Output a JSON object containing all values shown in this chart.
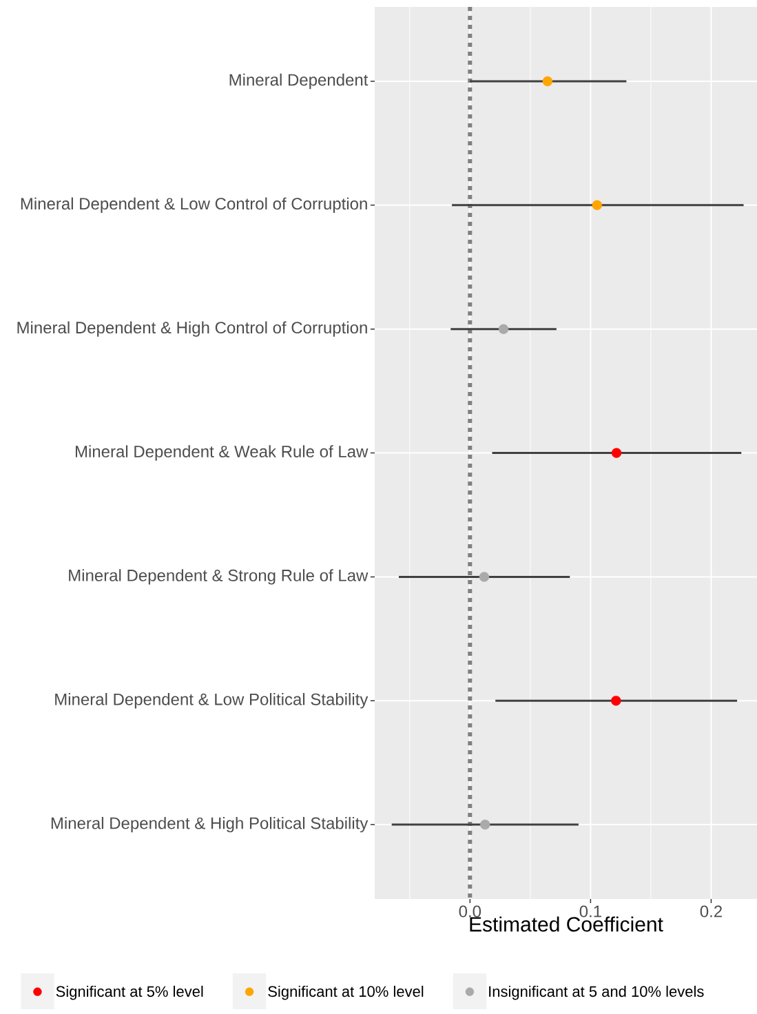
{
  "chart_data": {
    "type": "scatter",
    "orientation": "horizontal",
    "categories": [
      "Mineral Dependent",
      "Mineral Dependent & Low Control of Corruption",
      "Mineral Dependent & High Control of Corruption",
      "Mineral Dependent & Weak Rule of Law",
      "Mineral Dependent & Strong Rule of Law",
      "Mineral Dependent & Low Political Stability",
      "Mineral Dependent & High Political Stability"
    ],
    "series": [
      {
        "name": "Significant at 5% level",
        "color": "#ff0000",
        "values": [
          null,
          null,
          null,
          0.1215,
          null,
          0.1211,
          null
        ],
        "errors": [
          null,
          null,
          null,
          [
            0.0184,
            0.225
          ],
          null,
          [
            0.0211,
            0.2215
          ],
          null
        ]
      },
      {
        "name": "Significant at 10% level",
        "color": "#ffa500",
        "values": [
          0.0643,
          0.1054,
          null,
          null,
          null,
          null,
          null
        ],
        "errors": [
          [
            0.0,
            0.1297
          ],
          [
            -0.015,
            0.2269
          ],
          null,
          null,
          null,
          null,
          null
        ]
      },
      {
        "name": "Insignificant at 5 and 10% levels",
        "color": "#aaaaaa",
        "values": [
          null,
          null,
          0.0278,
          null,
          0.0118,
          null,
          0.0125
        ],
        "errors": [
          null,
          null,
          [
            -0.016,
            0.0717
          ],
          null,
          [
            -0.059,
            0.0828
          ],
          null,
          [
            -0.0649,
            0.09
          ]
        ]
      }
    ],
    "xlim": [
      -0.079,
      0.238
    ],
    "xticks": [
      {
        "value": -0.05,
        "label": null
      },
      {
        "value": 0.0,
        "label": "0.0"
      },
      {
        "value": 0.05,
        "label": null
      },
      {
        "value": 0.1,
        "label": "0.1"
      },
      {
        "value": 0.15,
        "label": null
      },
      {
        "value": 0.2,
        "label": "0.2"
      }
    ],
    "xlabel": "Estimated Coefficient",
    "ref_lines": [
      {
        "axis": "x",
        "value": 0,
        "color": "#808080",
        "line_style": "dotted"
      }
    ],
    "grid": true,
    "legend": "bottom",
    "marker": "circle"
  }
}
